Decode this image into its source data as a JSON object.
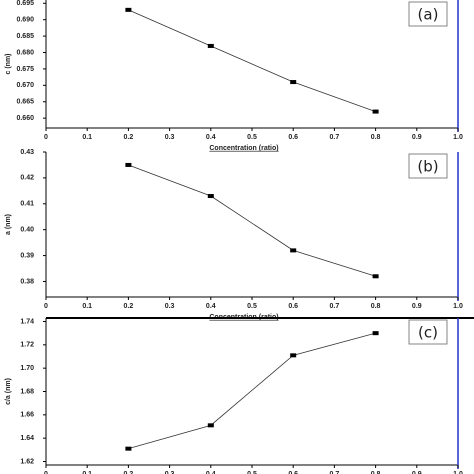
{
  "chart_data": [
    {
      "type": "line",
      "annotation": "(a)",
      "ylabel": "c (nm)",
      "xlabel": "Concentration (ratio)",
      "x": [
        0.2,
        0.4,
        0.6,
        0.8
      ],
      "values": [
        0.693,
        0.682,
        0.671,
        0.662
      ],
      "color": "#333333",
      "xlim": [
        0,
        1
      ],
      "ylim": [
        0.657,
        0.696
      ],
      "xticks": [
        0,
        0.1,
        0.2,
        0.3,
        0.4,
        0.5,
        0.6,
        0.7,
        0.8,
        0.9,
        {
          "value": 1,
          "label": "1.0"
        }
      ],
      "yticks": [
        {
          "value": 0.66,
          "label": "0.660"
        },
        0.665,
        {
          "value": 0.67,
          "label": "0.670"
        },
        0.675,
        {
          "value": 0.68,
          "label": "0.680"
        },
        0.685,
        {
          "value": 0.69,
          "label": "0.690"
        },
        0.695
      ]
    },
    {
      "type": "line",
      "annotation": "(b)",
      "ylabel": "a (nm)",
      "xlabel": "Concentration (ratio)",
      "x": [
        0.2,
        0.4,
        0.6,
        0.8
      ],
      "values": [
        0.425,
        0.413,
        0.392,
        0.382
      ],
      "color": "#333333",
      "xlim": [
        0,
        1
      ],
      "ylim": [
        0.374,
        0.43
      ],
      "xticks": [
        0,
        0.1,
        0.2,
        0.3,
        0.4,
        0.5,
        0.6,
        0.7,
        0.8,
        0.9,
        {
          "value": 1,
          "label": "1.0"
        }
      ],
      "yticks": [
        0.38,
        0.39,
        {
          "value": 0.4,
          "label": "0.40"
        },
        0.41,
        0.42,
        0.43
      ]
    },
    {
      "type": "line",
      "annotation": "(c)",
      "ylabel": "c/a (nm)",
      "x": [
        0.2,
        0.4,
        0.6,
        0.8
      ],
      "values": [
        1.631,
        1.651,
        1.711,
        1.73
      ],
      "color": "#333333",
      "xlim": [
        0,
        1
      ],
      "ylim": [
        1.617,
        1.743
      ],
      "xticks": [
        0,
        0.1,
        0.2,
        0.3,
        0.4,
        0.5,
        0.6,
        0.7,
        0.8,
        0.9,
        {
          "value": 1,
          "label": "1.0"
        }
      ],
      "yticks": [
        1.62,
        1.64,
        1.66,
        1.68,
        {
          "value": 1.7,
          "label": "1.70"
        },
        1.72,
        1.74
      ]
    }
  ]
}
